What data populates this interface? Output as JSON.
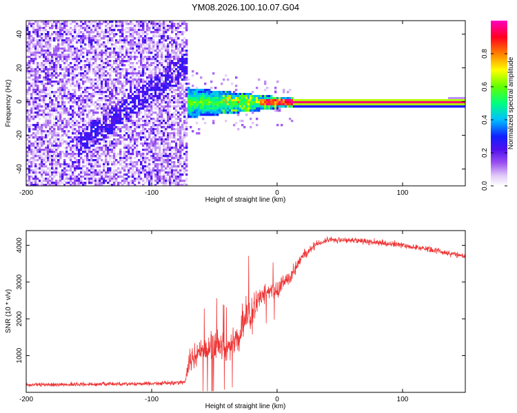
{
  "figure": {
    "title": "YM08.2026.100.10.07.G04"
  },
  "colors": {
    "series": "#ee3333",
    "axis": "#000000",
    "background": "#ffffff"
  },
  "chart_data": [
    {
      "type": "heatmap",
      "title": "YM08.2026.100.10.07.G04",
      "xlabel": "Height of straight line (km)",
      "ylabel": "Frequency (Hz)",
      "xlim": [
        -200,
        150
      ],
      "ylim": [
        -50,
        48
      ],
      "xticks": [
        "-200",
        "-100",
        "0",
        "100"
      ],
      "yticks": [
        "-40",
        "-20",
        "0",
        "20",
        "40"
      ],
      "xtick_values": [
        -200,
        -100,
        0,
        100
      ],
      "ytick_values": [
        -40,
        -20,
        0,
        20,
        40
      ],
      "colorbar": {
        "label": "Normalized spectral amplitude",
        "range": [
          0.0,
          1.0
        ],
        "ticks": [
          "0.0",
          "0.2",
          "0.4",
          "0.6",
          "0.8"
        ],
        "tick_values": [
          0.0,
          0.2,
          0.4,
          0.6,
          0.8
        ],
        "colormap": "rainbow (white-lavender-purple-blue-cyan-green-yellow-red-magenta)"
      },
      "regions": [
        {
          "x_range": [
            -200,
            -73
          ],
          "description": "broadband noise, amplitude ~0.05-0.15"
        },
        {
          "x_range": [
            -73,
            10
          ],
          "description": "signal converging toward 0 Hz"
        },
        {
          "x_range": [
            10,
            150
          ],
          "description": "strong narrow line at 0 Hz, amplitude ~1.0"
        }
      ]
    },
    {
      "type": "line",
      "xlabel": "Height of straight line (km)",
      "ylabel": "SNR (10 * v/v)",
      "xlim": [
        -200,
        150
      ],
      "ylim": [
        0,
        4400
      ],
      "xticks": [
        "-200",
        "-100",
        "0",
        "100"
      ],
      "yticks": [
        "1000",
        "2000",
        "3000",
        "4000"
      ],
      "xtick_values": [
        -200,
        -100,
        0,
        100
      ],
      "ytick_values": [
        1000,
        2000,
        3000,
        4000
      ],
      "series": [
        {
          "name": "SNR",
          "x": [
            -200,
            -150,
            -100,
            -80,
            -73,
            -70,
            -60,
            -50,
            -40,
            -30,
            -25,
            -20,
            -15,
            -10,
            -5,
            0,
            5,
            10,
            20,
            30,
            40,
            50,
            60,
            80,
            100,
            120,
            150
          ],
          "y": [
            200,
            220,
            240,
            260,
            300,
            900,
            1100,
            1300,
            1200,
            1500,
            2100,
            2000,
            2600,
            2700,
            2800,
            2700,
            3000,
            3100,
            3700,
            4000,
            4150,
            4150,
            4130,
            4080,
            4000,
            3900,
            3700
          ],
          "noise_amplitude": [
            80,
            80,
            80,
            80,
            100,
            500,
            500,
            600,
            500,
            600,
            800,
            700,
            400,
            400,
            350,
            350,
            300,
            300,
            200,
            150,
            120,
            120,
            120,
            120,
            120,
            120,
            120
          ]
        }
      ]
    }
  ]
}
